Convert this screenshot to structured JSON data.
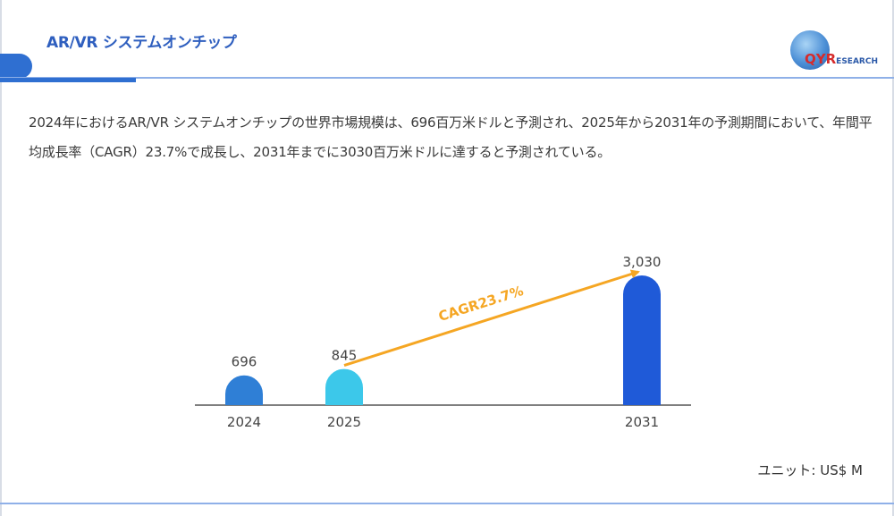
{
  "header": {
    "title": "AR/VR システムオンチップ"
  },
  "logo": {
    "text_main": "QYR",
    "text_sub": "ESEARCH"
  },
  "description": "2024年におけるAR/VR システムオンチップの世界市場規模は、696百万米ドルと予測され、2025年から2031年の予測期間において、年間平均成長率（CAGR）23.7%で成長し、2031年までに3030百万米ドルに達すると予測されている。",
  "unit_label": "ユニット: US$ M",
  "colors": {
    "accent": "#2f6fd1",
    "arrow": "#f5a623",
    "bar_2024": "#2f7fd6",
    "bar_2025": "#3cc8ea",
    "bar_2031": "#1f5ad8"
  },
  "chart_data": {
    "type": "bar",
    "categories": [
      "2024",
      "2025",
      "2031"
    ],
    "values": [
      696,
      845,
      3030
    ],
    "value_labels": [
      "696",
      "845",
      "3,030"
    ],
    "title": "",
    "xlabel": "",
    "ylabel": "",
    "ylim": [
      0,
      3030
    ],
    "grid": false,
    "annotation": {
      "text": "CAGR23.7%",
      "from_category": "2025",
      "to_category": "2031"
    }
  }
}
